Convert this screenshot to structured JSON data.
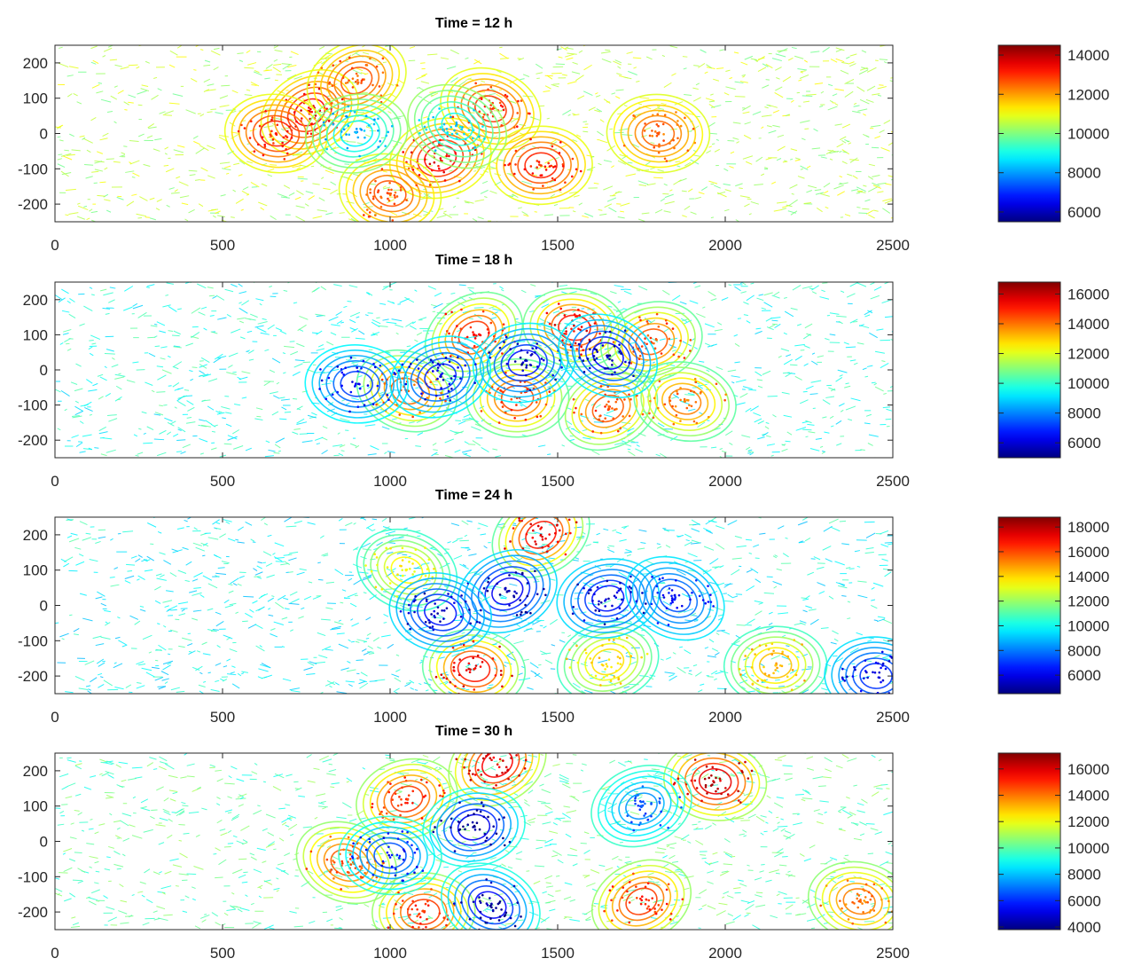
{
  "chart_data": [
    {
      "type": "heatmap",
      "title": "Time = 12 h",
      "xlabel": "",
      "ylabel": "",
      "xlim": [
        0,
        2500
      ],
      "ylim": [
        -250,
        250
      ],
      "x_ticks": [
        "0",
        "500",
        "1000",
        "1500",
        "2000",
        "2500"
      ],
      "y_ticks": [
        "200",
        "100",
        "0",
        "-100",
        "-200"
      ],
      "colorbar": {
        "min": 5500,
        "max": 14500,
        "ticks": [
          "14000",
          "12000",
          "10000",
          "8000",
          "6000"
        ]
      },
      "background_level": 10500,
      "features": [
        {
          "x": 760,
          "y": 60,
          "value": 13800
        },
        {
          "x": 660,
          "y": 0,
          "value": 13500
        },
        {
          "x": 1150,
          "y": -70,
          "value": 13800
        },
        {
          "x": 1300,
          "y": 70,
          "value": 13300
        },
        {
          "x": 1450,
          "y": -90,
          "value": 13500
        },
        {
          "x": 900,
          "y": 150,
          "value": 13000
        },
        {
          "x": 1000,
          "y": -170,
          "value": 13000
        },
        {
          "x": 900,
          "y": 0,
          "value": 8500
        },
        {
          "x": 1200,
          "y": 20,
          "value": 8800
        },
        {
          "x": 1800,
          "y": 0,
          "value": 12800
        }
      ]
    },
    {
      "type": "heatmap",
      "title": "Time = 18 h",
      "xlabel": "",
      "ylabel": "",
      "xlim": [
        0,
        2500
      ],
      "ylim": [
        -250,
        250
      ],
      "x_ticks": [
        "0",
        "500",
        "1000",
        "1500",
        "2000",
        "2500"
      ],
      "y_ticks": [
        "200",
        "100",
        "0",
        "-100",
        "-200"
      ],
      "colorbar": {
        "min": 5000,
        "max": 16800,
        "ticks": [
          "16000",
          "14000",
          "12000",
          "10000",
          "8000",
          "6000"
        ]
      },
      "background_level": 9800,
      "features": [
        {
          "x": 1250,
          "y": 100,
          "value": 15500
        },
        {
          "x": 1550,
          "y": 120,
          "value": 16000
        },
        {
          "x": 1780,
          "y": 80,
          "value": 15000
        },
        {
          "x": 1050,
          "y": -60,
          "value": 14800
        },
        {
          "x": 1380,
          "y": -80,
          "value": 15200
        },
        {
          "x": 1650,
          "y": -110,
          "value": 15000
        },
        {
          "x": 1880,
          "y": -90,
          "value": 14500
        },
        {
          "x": 1400,
          "y": 20,
          "value": 6200
        },
        {
          "x": 1650,
          "y": 40,
          "value": 6000
        },
        {
          "x": 900,
          "y": -40,
          "value": 6800
        },
        {
          "x": 1150,
          "y": -20,
          "value": 6500
        }
      ]
    },
    {
      "type": "heatmap",
      "title": "Time = 24 h",
      "xlabel": "",
      "ylabel": "",
      "xlim": [
        0,
        2500
      ],
      "ylim": [
        -250,
        250
      ],
      "x_ticks": [
        "0",
        "500",
        "1000",
        "1500",
        "2000",
        "2500"
      ],
      "y_ticks": [
        "200",
        "100",
        "0",
        "-100",
        "-200"
      ],
      "colorbar": {
        "min": 4500,
        "max": 18800,
        "ticks": [
          "18000",
          "16000",
          "14000",
          "12000",
          "10000",
          "8000",
          "6000"
        ]
      },
      "background_level": 10000,
      "features": [
        {
          "x": 1450,
          "y": 200,
          "value": 17800
        },
        {
          "x": 1250,
          "y": -180,
          "value": 17800
        },
        {
          "x": 1650,
          "y": -160,
          "value": 14500
        },
        {
          "x": 1050,
          "y": 100,
          "value": 14000
        },
        {
          "x": 2150,
          "y": -170,
          "value": 15000
        },
        {
          "x": 1350,
          "y": 40,
          "value": 5500
        },
        {
          "x": 1150,
          "y": -20,
          "value": 6000
        },
        {
          "x": 1650,
          "y": 20,
          "value": 6000
        },
        {
          "x": 1850,
          "y": 20,
          "value": 7000
        },
        {
          "x": 2450,
          "y": -200,
          "value": 6500
        }
      ]
    },
    {
      "type": "heatmap",
      "title": "Time = 30 h",
      "xlabel": "",
      "ylabel": "",
      "xlim": [
        0,
        2500
      ],
      "ylim": [
        -250,
        250
      ],
      "x_ticks": [
        "0",
        "500",
        "1000",
        "1500",
        "2000",
        "2500"
      ],
      "y_ticks": [
        "200",
        "100",
        "0",
        "-100",
        "-200"
      ],
      "colorbar": {
        "min": 3800,
        "max": 17200,
        "ticks": [
          "16000",
          "14000",
          "12000",
          "10000",
          "8000",
          "6000",
          "4000"
        ]
      },
      "background_level": 10000,
      "features": [
        {
          "x": 1320,
          "y": 220,
          "value": 16500
        },
        {
          "x": 1970,
          "y": 170,
          "value": 16800
        },
        {
          "x": 1050,
          "y": 120,
          "value": 15500
        },
        {
          "x": 870,
          "y": -60,
          "value": 15000
        },
        {
          "x": 1100,
          "y": -200,
          "value": 15500
        },
        {
          "x": 1750,
          "y": -170,
          "value": 15500
        },
        {
          "x": 2400,
          "y": -170,
          "value": 14500
        },
        {
          "x": 1250,
          "y": 40,
          "value": 4500
        },
        {
          "x": 1300,
          "y": -180,
          "value": 4800
        },
        {
          "x": 1000,
          "y": -40,
          "value": 6000
        },
        {
          "x": 1750,
          "y": 100,
          "value": 7000
        }
      ]
    }
  ]
}
